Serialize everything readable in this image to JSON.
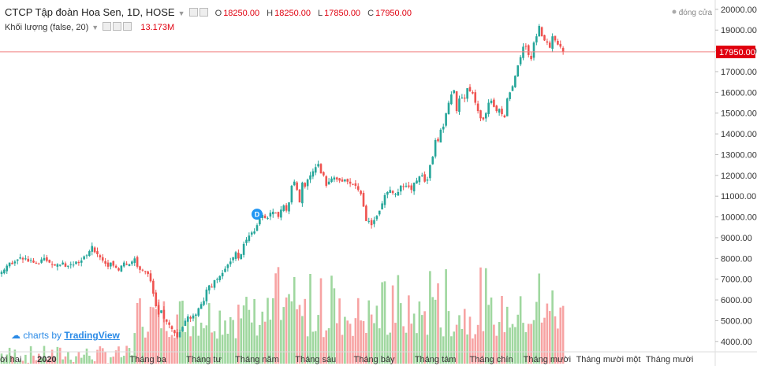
{
  "header": {
    "symbol": "CTCP Tập đoàn Hoa Sen, 1D, HOSE",
    "o_label": "O",
    "o_value": "18250.00",
    "h_label": "H",
    "h_value": "18250.00",
    "l_label": "L",
    "l_value": "17850.00",
    "c_label": "C",
    "c_value": "17950.00"
  },
  "volume_legend": {
    "label": "Khối lượng (false, 20)",
    "value": "13.173M"
  },
  "price_scale_tag": "đóng cửa",
  "last_price_label": "17950.00",
  "dividend_marker": "D",
  "branding": {
    "prefix": "charts by",
    "name": "TradingView"
  },
  "colors": {
    "up": "#26a69a",
    "down": "#ef5350",
    "vol_up": "#9fd79f",
    "vol_down": "#f7a3a3",
    "price_line": "#f08080",
    "accent": "#e0000f"
  },
  "chart_data": {
    "type": "candlestick",
    "y_ticks": [
      4000,
      5000,
      6000,
      7000,
      8000,
      9000,
      10000,
      11000,
      12000,
      13000,
      14000,
      15000,
      16000,
      17000,
      18000,
      19000,
      20000
    ],
    "y_tick_labels": [
      "4000.00",
      "5000.00",
      "6000.00",
      "7000.00",
      "8000.00",
      "9000.00",
      "10000.00",
      "11000.00",
      "12000.00",
      "13000.00",
      "14000.00",
      "15000.00",
      "16000.00",
      "17000.00",
      "18000.00",
      "19000.00",
      "20000.00"
    ],
    "ylim": [
      3500,
      20450
    ],
    "x_labels": [
      {
        "label": "mười hai",
        "i": 1,
        "bold": false
      },
      {
        "label": "2020",
        "i": 17,
        "bold": true
      },
      {
        "label": "Tháng ba",
        "i": 55,
        "bold": false
      },
      {
        "label": "Tháng tư",
        "i": 76,
        "bold": false
      },
      {
        "label": "Tháng năm",
        "i": 96,
        "bold": false
      },
      {
        "label": "Tháng sáu",
        "i": 118,
        "bold": false
      },
      {
        "label": "Tháng bảy",
        "i": 140,
        "bold": false
      },
      {
        "label": "Tháng tám",
        "i": 163,
        "bold": false
      },
      {
        "label": "Tháng chín",
        "i": 184,
        "bold": false
      },
      {
        "label": "Tháng mười",
        "i": 205,
        "bold": false
      },
      {
        "label": "Tháng mười một",
        "i": 228,
        "bold": false
      },
      {
        "label": "Tháng mười",
        "i": 251,
        "bold": false
      }
    ],
    "last_close": 17950,
    "dividend_index": 96,
    "close": [
      7350,
      7460,
      7650,
      7800,
      7720,
      7850,
      7950,
      8050,
      7950,
      8000,
      7850,
      7920,
      7800,
      7750,
      7720,
      7950,
      8020,
      7880,
      7800,
      7700,
      7650,
      7720,
      7700,
      7800,
      7600,
      7650,
      7720,
      7700,
      7850,
      7780,
      7900,
      8100,
      8150,
      8350,
      8600,
      8300,
      8200,
      8050,
      7900,
      7750,
      7600,
      7800,
      7650,
      7550,
      7420,
      7650,
      7800,
      7700,
      7720,
      7850,
      8000,
      7600,
      7450,
      7450,
      7350,
      7250,
      6900,
      6300,
      5700,
      5300,
      5500,
      5100,
      4950,
      4800,
      4600,
      4400,
      4200,
      4450,
      4700,
      5000,
      5200,
      5100,
      5250,
      5300,
      5600,
      5800,
      5950,
      6500,
      6700,
      6600,
      6950,
      7000,
      7150,
      7300,
      7500,
      7700,
      7850,
      8050,
      8300,
      8000,
      8200,
      8700,
      8900,
      9100,
      9250,
      9300,
      9600,
      9900,
      10100,
      9950,
      9950,
      10200,
      10250,
      10200,
      10000,
      10350,
      10550,
      10300,
      10700,
      11500,
      11700,
      11300,
      10700,
      11650,
      11450,
      11800,
      12000,
      12200,
      12400,
      12550,
      12100,
      12000,
      11500,
      11700,
      11850,
      11900,
      11800,
      11750,
      11700,
      11800,
      11700,
      11600,
      11550,
      11500,
      11300,
      11100,
      10500,
      9800,
      9800,
      9600,
      9850,
      10050,
      10300,
      10650,
      11050,
      11200,
      11300,
      11150,
      11100,
      11200,
      11500,
      11450,
      11500,
      11450,
      11300,
      11650,
      11750,
      11950,
      12000,
      11700,
      11800,
      12500,
      12900,
      13700,
      13650,
      14200,
      14350,
      15000,
      15500,
      15900,
      16100,
      15100,
      15700,
      15750,
      15700,
      16200,
      16050,
      15950,
      15500,
      15100,
      14750,
      14700,
      15000,
      15500,
      15600,
      15300,
      15100,
      15200,
      14950,
      14800,
      15700,
      16000,
      16300,
      16800,
      17300,
      17700,
      18200,
      18200,
      17800,
      17600,
      18400,
      18700,
      19200,
      18700,
      18500,
      18400,
      18150,
      18700,
      18500,
      18300,
      18200,
      17950
    ]
  }
}
